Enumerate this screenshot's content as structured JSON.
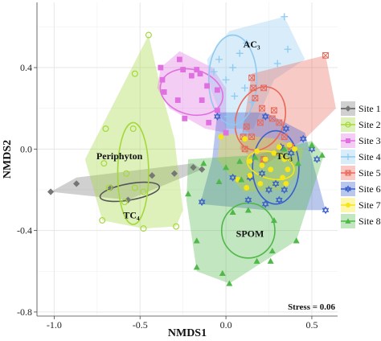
{
  "chart_data": {
    "type": "scatter",
    "xlabel": "NMDS1",
    "ylabel": "NMDS2",
    "xlim": [
      -1.1,
      0.65
    ],
    "ylim": [
      -0.82,
      0.72
    ],
    "xticks": [
      -1.0,
      -0.5,
      0.0,
      0.5
    ],
    "xtick_labels": [
      "-1.0",
      "-0.5",
      "0.0",
      "0.5"
    ],
    "yticks": [
      -0.8,
      -0.4,
      0.0,
      0.4
    ],
    "ytick_labels": [
      "-0.8",
      "-0.4",
      "0.0",
      "0.4"
    ],
    "grid": true,
    "legend_position": "right",
    "stress_label": "Stress = 0.06",
    "group_labels": [
      {
        "text": "AC₃",
        "x": 0.15,
        "y": 0.51
      },
      {
        "text": "Periphyton",
        "x": -0.62,
        "y": -0.04
      },
      {
        "text": "TC₃",
        "x": 0.34,
        "y": -0.04
      },
      {
        "text": "TC₄",
        "x": -0.55,
        "y": -0.33
      },
      {
        "text": "SPOM",
        "x": 0.14,
        "y": -0.42
      }
    ],
    "series": [
      {
        "name": "Site 1",
        "color": "#777777",
        "marker": "diamond",
        "points": [
          [
            -1.02,
            -0.21
          ],
          [
            -0.87,
            -0.17
          ],
          [
            -0.67,
            -0.19
          ],
          [
            -0.57,
            -0.25
          ],
          [
            -0.43,
            -0.13
          ],
          [
            -0.3,
            -0.12
          ],
          [
            -0.19,
            -0.09
          ],
          [
            -0.14,
            -0.1
          ]
        ],
        "hull": [
          [
            -1.02,
            -0.21
          ],
          [
            -0.87,
            -0.14
          ],
          [
            -0.19,
            -0.07
          ],
          [
            -0.14,
            -0.1
          ],
          [
            -0.57,
            -0.25
          ]
        ],
        "ellipse": {
          "cx": -0.56,
          "cy": -0.21,
          "rx": 0.175,
          "ry": 0.04,
          "angle": 10
        }
      },
      {
        "name": "Site 2",
        "color": "#a4d83a",
        "marker": "circle-open",
        "points": [
          [
            -0.45,
            0.56
          ],
          [
            -0.53,
            0.37
          ],
          [
            -0.7,
            0.1
          ],
          [
            -0.54,
            0.1
          ],
          [
            -0.71,
            -0.07
          ],
          [
            -0.58,
            -0.12
          ],
          [
            -0.68,
            -0.19
          ],
          [
            -0.53,
            -0.19
          ],
          [
            -0.48,
            -0.21
          ],
          [
            -0.59,
            -0.26
          ],
          [
            -0.72,
            -0.35
          ],
          [
            -0.48,
            -0.39
          ],
          [
            -0.29,
            -0.38
          ]
        ],
        "hull": [
          [
            -0.45,
            0.56
          ],
          [
            -0.38,
            0.3
          ],
          [
            -0.3,
            0.05
          ],
          [
            -0.25,
            -0.3
          ],
          [
            -0.29,
            -0.38
          ],
          [
            -0.48,
            -0.39
          ],
          [
            -0.72,
            -0.35
          ],
          [
            -0.82,
            -0.05
          ]
        ],
        "ellipse": {
          "cx": -0.54,
          "cy": -0.12,
          "rx": 0.09,
          "ry": 0.25,
          "angle": 0
        }
      },
      {
        "name": "Site 3",
        "color": "#e070e0",
        "marker": "square",
        "points": [
          [
            -0.38,
            0.4
          ],
          [
            -0.37,
            0.34
          ],
          [
            -0.36,
            0.28
          ],
          [
            -0.27,
            0.44
          ],
          [
            -0.25,
            0.39
          ],
          [
            -0.2,
            0.36
          ],
          [
            -0.17,
            0.39
          ],
          [
            -0.15,
            0.37
          ],
          [
            -0.11,
            0.31
          ],
          [
            -0.05,
            0.29
          ],
          [
            -0.28,
            0.24
          ],
          [
            -0.14,
            0.24
          ],
          [
            -0.24,
            0.15
          ],
          [
            -0.05,
            0.19
          ],
          [
            -0.1,
            0.13
          ],
          [
            0.0,
            0.08
          ]
        ],
        "hull": [
          [
            -0.38,
            0.4
          ],
          [
            -0.27,
            0.48
          ],
          [
            -0.08,
            0.4
          ],
          [
            0.0,
            0.3
          ],
          [
            0.0,
            0.08
          ],
          [
            -0.12,
            0.1
          ],
          [
            -0.33,
            0.2
          ],
          [
            -0.4,
            0.3
          ]
        ],
        "ellipse": {
          "cx": -0.2,
          "cy": 0.28,
          "rx": 0.185,
          "ry": 0.11,
          "angle": -15
        }
      },
      {
        "name": "Site 4",
        "color": "#8ec9f2",
        "marker": "plus",
        "points": [
          [
            0.34,
            0.65
          ],
          [
            0.12,
            0.52
          ],
          [
            0.36,
            0.49
          ],
          [
            0.08,
            0.47
          ],
          [
            -0.04,
            0.44
          ],
          [
            -0.07,
            0.38
          ],
          [
            0.04,
            0.4
          ],
          [
            0.0,
            0.34
          ],
          [
            0.11,
            0.3
          ],
          [
            0.05,
            0.26
          ],
          [
            0.15,
            0.23
          ],
          [
            0.01,
            0.16
          ],
          [
            0.05,
            0.12
          ],
          [
            0.11,
            0.08
          ],
          [
            0.3,
            0.42
          ]
        ],
        "hull": [
          [
            0.02,
            0.58
          ],
          [
            0.34,
            0.65
          ],
          [
            0.46,
            0.44
          ],
          [
            0.28,
            0.34
          ],
          [
            0.16,
            0.1
          ],
          [
            0.0,
            0.1
          ],
          [
            -0.09,
            0.3
          ],
          [
            -0.11,
            0.44
          ]
        ],
        "ellipse": {
          "cx": 0.04,
          "cy": 0.34,
          "rx": 0.14,
          "ry": 0.22,
          "angle": 0
        }
      },
      {
        "name": "Site 5",
        "color": "#e8685a",
        "marker": "square-x",
        "points": [
          [
            0.58,
            0.46
          ],
          [
            0.15,
            0.35
          ],
          [
            0.16,
            0.3
          ],
          [
            0.22,
            0.3
          ],
          [
            0.17,
            0.25
          ],
          [
            0.21,
            0.2
          ],
          [
            0.28,
            0.19
          ],
          [
            0.27,
            0.15
          ],
          [
            0.31,
            0.13
          ],
          [
            0.2,
            0.13
          ],
          [
            0.12,
            0.11
          ],
          [
            0.15,
            0.06
          ],
          [
            0.34,
            0.06
          ],
          [
            0.11,
            0.0
          ],
          [
            0.38,
            0.01
          ],
          [
            0.22,
            -0.05
          ],
          [
            0.1,
            0.06
          ]
        ],
        "hull": [
          [
            0.15,
            0.37
          ],
          [
            0.58,
            0.46
          ],
          [
            0.64,
            0.2
          ],
          [
            0.46,
            0.05
          ],
          [
            0.22,
            -0.08
          ],
          [
            0.08,
            0.0
          ]
        ],
        "ellipse": {
          "cx": 0.2,
          "cy": 0.15,
          "rx": 0.14,
          "ry": 0.16,
          "angle": -20
        }
      },
      {
        "name": "Site 6",
        "color": "#3a5ecb",
        "marker": "hexagram",
        "points": [
          [
            -0.05,
            0.16
          ],
          [
            0.23,
            0.16
          ],
          [
            0.45,
            0.05
          ],
          [
            0.32,
            0.01
          ],
          [
            0.38,
            -0.02
          ],
          [
            0.53,
            -0.05
          ],
          [
            0.21,
            -0.12
          ],
          [
            0.14,
            -0.14
          ],
          [
            0.04,
            -0.14
          ],
          [
            0.25,
            -0.2
          ],
          [
            0.34,
            -0.2
          ],
          [
            0.31,
            -0.25
          ],
          [
            0.13,
            -0.25
          ],
          [
            -0.14,
            -0.26
          ],
          [
            0.23,
            -0.27
          ],
          [
            0.58,
            -0.3
          ],
          [
            0.29,
            -0.17
          ],
          [
            0.5,
            0.0
          ],
          [
            0.35,
            0.1
          ]
        ],
        "hull": [
          [
            -0.05,
            0.18
          ],
          [
            0.23,
            0.18
          ],
          [
            0.46,
            0.08
          ],
          [
            0.58,
            -0.3
          ],
          [
            0.23,
            -0.3
          ],
          [
            -0.15,
            -0.27
          ],
          [
            -0.08,
            -0.05
          ]
        ],
        "ellipse": {
          "cx": 0.29,
          "cy": -0.09,
          "rx": 0.135,
          "ry": 0.18,
          "angle": 0
        }
      },
      {
        "name": "Site 7",
        "color": "#f7e617",
        "marker": "circle",
        "points": [
          [
            -0.03,
            0.06
          ],
          [
            0.11,
            0.05
          ],
          [
            0.31,
            0.01
          ],
          [
            0.37,
            0.02
          ],
          [
            0.4,
            0.0
          ],
          [
            0.18,
            -0.01
          ],
          [
            0.28,
            -0.02
          ],
          [
            0.23,
            -0.05
          ],
          [
            0.34,
            -0.05
          ],
          [
            0.14,
            -0.06
          ],
          [
            0.21,
            -0.08
          ],
          [
            0.36,
            -0.1
          ],
          [
            0.26,
            -0.1
          ],
          [
            0.14,
            -0.13
          ],
          [
            0.33,
            -0.14
          ],
          [
            0.2,
            -0.17
          ],
          [
            0.35,
            -0.17
          ],
          [
            0.12,
            -0.19
          ],
          [
            0.07,
            -0.15
          ]
        ],
        "hull": [
          [
            -0.03,
            0.08
          ],
          [
            0.3,
            0.05
          ],
          [
            0.45,
            0.0
          ],
          [
            0.42,
            -0.12
          ],
          [
            0.33,
            -0.2
          ],
          [
            0.1,
            -0.21
          ],
          [
            -0.05,
            -0.05
          ]
        ],
        "ellipse": {
          "cx": 0.26,
          "cy": -0.08,
          "rx": 0.14,
          "ry": 0.065,
          "angle": -15
        }
      },
      {
        "name": "Site 8",
        "color": "#4fb848",
        "marker": "triangle",
        "points": [
          [
            0.5,
            0.02
          ],
          [
            0.56,
            -0.03
          ],
          [
            0.34,
            0.0
          ],
          [
            0.17,
            -0.04
          ],
          [
            -0.13,
            -0.07
          ],
          [
            0.0,
            -0.09
          ],
          [
            0.08,
            -0.06
          ],
          [
            0.42,
            -0.07
          ],
          [
            -0.04,
            -0.16
          ],
          [
            0.09,
            -0.15
          ],
          [
            -0.22,
            -0.22
          ],
          [
            0.04,
            -0.31
          ],
          [
            0.13,
            -0.3
          ],
          [
            0.28,
            -0.35
          ],
          [
            -0.17,
            -0.45
          ],
          [
            0.27,
            -0.5
          ],
          [
            0.26,
            -0.55
          ],
          [
            0.18,
            -0.55
          ],
          [
            -0.17,
            -0.58
          ],
          [
            -0.02,
            -0.61
          ],
          [
            0.41,
            -0.45
          ],
          [
            0.02,
            -0.66
          ]
        ],
        "hull": [
          [
            -0.22,
            -0.05
          ],
          [
            0.17,
            -0.03
          ],
          [
            0.5,
            0.04
          ],
          [
            0.57,
            -0.03
          ],
          [
            0.41,
            -0.45
          ],
          [
            0.02,
            -0.66
          ],
          [
            -0.17,
            -0.6
          ],
          [
            -0.23,
            -0.25
          ]
        ],
        "ellipse": {
          "cx": 0.13,
          "cy": -0.4,
          "rx": 0.155,
          "ry": 0.135,
          "angle": 0
        }
      }
    ]
  }
}
